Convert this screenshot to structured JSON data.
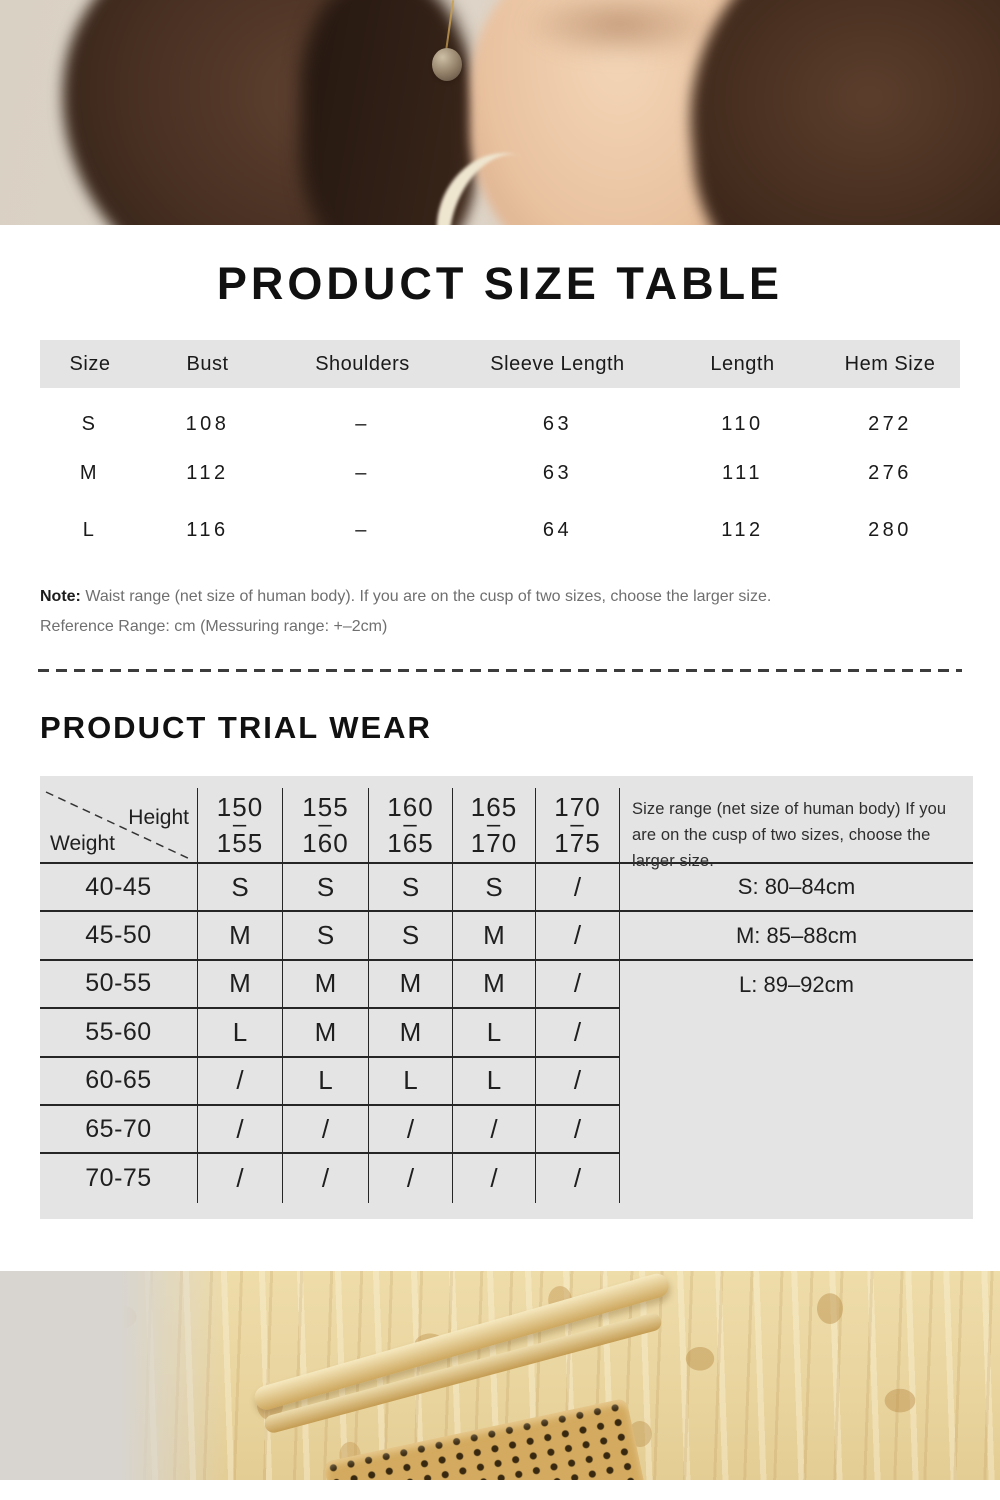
{
  "colors": {
    "table_header_bg": "#e4e4e4",
    "trial_table_bg": "#e4e4e4",
    "text_primary": "#161616",
    "text_secondary": "#6f6f6f",
    "line_color": "#262626"
  },
  "size_table": {
    "title": "PRODUCT SIZE TABLE",
    "columns": [
      "Size",
      "Bust",
      "Shoulders",
      "Sleeve Length",
      "Length",
      "Hem Size"
    ],
    "rows": [
      [
        "S",
        "108",
        "–",
        "63",
        "110",
        "272"
      ],
      [
        "M",
        "112",
        "–",
        "63",
        "111",
        "276"
      ],
      [
        "L",
        "116",
        "–",
        "64",
        "112",
        "280"
      ]
    ]
  },
  "notes": {
    "note_label": "Note:",
    "note_text": "Waist range (net size of human body). If you are on the cusp of two sizes, choose the larger size.",
    "reference_text": "Reference Range: cm (Messuring range: +–2cm)"
  },
  "trial_table": {
    "title": "PRODUCT TRIAL WEAR",
    "corner": {
      "top_label": "Height",
      "bottom_label": "Weight"
    },
    "height_dash": "–",
    "height_columns": [
      [
        "150",
        "155"
      ],
      [
        "155",
        "160"
      ],
      [
        "160",
        "165"
      ],
      [
        "165",
        "170"
      ],
      [
        "170",
        "175"
      ]
    ],
    "weight_rows": [
      "40-45",
      "45-50",
      "50-55",
      "55-60",
      "60-65",
      "65-70",
      "70-75"
    ],
    "cells": [
      [
        "S",
        "S",
        "S",
        "S",
        "/"
      ],
      [
        "M",
        "S",
        "S",
        "M",
        "/"
      ],
      [
        "M",
        "M",
        "M",
        "M",
        "/"
      ],
      [
        "L",
        "M",
        "M",
        "L",
        "/"
      ],
      [
        "/",
        "L",
        "L",
        "L",
        "/"
      ],
      [
        "/",
        "/",
        "/",
        "/",
        "/"
      ],
      [
        "/",
        "/",
        "/",
        "/",
        "/"
      ]
    ],
    "side_note": "Size range (net size of human body) If you are on the cusp of two sizes, choose the larger size.",
    "size_ranges": [
      "S: 80–84cm",
      "M: 85–88cm",
      "L: 89–92cm"
    ]
  }
}
